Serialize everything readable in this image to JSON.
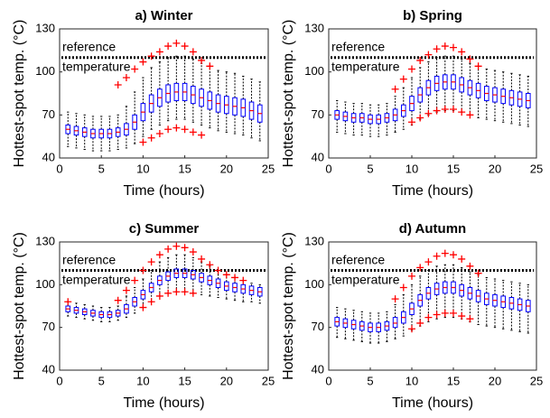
{
  "chart_data": [
    {
      "type": "box",
      "title": "a) Winter",
      "xlabel": "Time (hours)",
      "ylabel": "Hottest-spot temp. (°C)",
      "xlim": [
        0,
        25
      ],
      "xticks": [
        0,
        5,
        10,
        15,
        20,
        25
      ],
      "ylim": [
        40,
        130
      ],
      "yticks": [
        40,
        70,
        100,
        130
      ],
      "reference": {
        "value": 110,
        "labels": [
          "reference",
          "temperature"
        ]
      },
      "box_color": "#0000ff",
      "median_color": "#ff0000",
      "whisker_color": "#000000",
      "outlier_color": "#ff0000",
      "x": [
        1,
        2,
        3,
        4,
        5,
        6,
        7,
        8,
        9,
        10,
        11,
        12,
        13,
        14,
        15,
        16,
        17,
        18,
        19,
        20,
        21,
        22,
        23,
        24
      ],
      "median": [
        60,
        59,
        58,
        57,
        57,
        57,
        58,
        60,
        65,
        72,
        78,
        82,
        85,
        86,
        86,
        84,
        82,
        80,
        78,
        77,
        76,
        75,
        73,
        71
      ],
      "q1": [
        57,
        56,
        55,
        54,
        54,
        54,
        55,
        56,
        60,
        66,
        72,
        76,
        79,
        80,
        80,
        78,
        76,
        74,
        72,
        71,
        70,
        69,
        67,
        65
      ],
      "q3": [
        63,
        62,
        61,
        60,
        60,
        60,
        61,
        64,
        70,
        78,
        84,
        88,
        91,
        92,
        92,
        90,
        88,
        86,
        84,
        83,
        82,
        81,
        79,
        77
      ],
      "whisker_low": [
        48,
        47,
        46,
        45,
        45,
        45,
        46,
        47,
        50,
        55,
        60,
        63,
        66,
        67,
        67,
        65,
        63,
        61,
        59,
        58,
        57,
        56,
        54,
        52
      ],
      "whisker_high": [
        72,
        71,
        70,
        69,
        69,
        69,
        70,
        76,
        86,
        96,
        103,
        107,
        110,
        111,
        111,
        109,
        106,
        104,
        101,
        100,
        99,
        97,
        95,
        93
      ],
      "outliers_high": [
        null,
        null,
        null,
        null,
        null,
        null,
        91,
        96,
        102,
        107,
        111,
        114,
        118,
        120,
        118,
        114,
        108,
        104,
        null,
        null,
        null,
        null,
        null,
        null
      ],
      "outliers_low": [
        null,
        null,
        null,
        null,
        null,
        null,
        null,
        null,
        null,
        51,
        54,
        57,
        60,
        61,
        60,
        58,
        56,
        null,
        null,
        null,
        null,
        null,
        null,
        null
      ]
    },
    {
      "type": "box",
      "title": "b) Spring",
      "xlabel": "Time (hours)",
      "ylabel": "Hottest-spot temp. (°C)",
      "xlim": [
        0,
        25
      ],
      "xticks": [
        0,
        5,
        10,
        15,
        20,
        25
      ],
      "ylim": [
        40,
        130
      ],
      "yticks": [
        40,
        70,
        100,
        130
      ],
      "reference": {
        "value": 110,
        "labels": [
          "reference",
          "temperature"
        ]
      },
      "box_color": "#0000ff",
      "median_color": "#ff0000",
      "whisker_color": "#000000",
      "outlier_color": "#ff0000",
      "x": [
        1,
        2,
        3,
        4,
        5,
        6,
        7,
        8,
        9,
        10,
        11,
        12,
        13,
        14,
        15,
        16,
        17,
        18,
        19,
        20,
        21,
        22,
        23,
        24
      ],
      "median": [
        70,
        69,
        68,
        68,
        67,
        67,
        68,
        70,
        73,
        78,
        84,
        89,
        92,
        93,
        93,
        91,
        89,
        87,
        85,
        84,
        83,
        82,
        81,
        80
      ],
      "q1": [
        67,
        66,
        65,
        65,
        64,
        64,
        65,
        66,
        69,
        73,
        79,
        84,
        87,
        88,
        88,
        86,
        84,
        82,
        80,
        79,
        78,
        77,
        76,
        75
      ],
      "q3": [
        73,
        72,
        71,
        71,
        70,
        70,
        71,
        74,
        77,
        83,
        89,
        94,
        97,
        98,
        98,
        96,
        94,
        92,
        90,
        89,
        88,
        87,
        86,
        85
      ],
      "whisker_low": [
        58,
        57,
        56,
        56,
        55,
        55,
        56,
        58,
        60,
        63,
        67,
        70,
        72,
        73,
        73,
        72,
        70,
        68,
        67,
        66,
        65,
        64,
        63,
        62
      ],
      "whisker_high": [
        80,
        79,
        78,
        78,
        77,
        77,
        78,
        83,
        89,
        96,
        103,
        107,
        110,
        111,
        111,
        109,
        106,
        104,
        102,
        101,
        100,
        99,
        98,
        97
      ],
      "outliers_high": [
        null,
        null,
        null,
        null,
        null,
        null,
        null,
        88,
        95,
        102,
        108,
        112,
        116,
        118,
        117,
        114,
        109,
        104,
        null,
        null,
        null,
        null,
        null,
        null
      ],
      "outliers_low": [
        null,
        null,
        null,
        null,
        null,
        null,
        null,
        null,
        null,
        65,
        68,
        71,
        73,
        74,
        74,
        72,
        70,
        null,
        null,
        null,
        null,
        null,
        null,
        null
      ]
    },
    {
      "type": "box",
      "title": "c) Summer",
      "xlabel": "Time (hours)",
      "ylabel": "Hottest-spot temp. (°C)",
      "xlim": [
        0,
        25
      ],
      "xticks": [
        0,
        5,
        10,
        15,
        20,
        25
      ],
      "ylim": [
        40,
        130
      ],
      "yticks": [
        40,
        70,
        100,
        130
      ],
      "reference": {
        "value": 110,
        "labels": [
          "reference",
          "temperature"
        ]
      },
      "box_color": "#0000ff",
      "median_color": "#ff0000",
      "whisker_color": "#000000",
      "outlier_color": "#ff0000",
      "x": [
        1,
        2,
        3,
        4,
        5,
        6,
        7,
        8,
        9,
        10,
        11,
        12,
        13,
        14,
        15,
        16,
        17,
        18,
        19,
        20,
        21,
        22,
        23,
        24
      ],
      "median": [
        83,
        82,
        81,
        80,
        79,
        79,
        80,
        83,
        88,
        93,
        98,
        103,
        106,
        108,
        108,
        107,
        105,
        103,
        101,
        99,
        98,
        97,
        96,
        95
      ],
      "q1": [
        81,
        80,
        79,
        78,
        77,
        77,
        78,
        80,
        85,
        90,
        95,
        100,
        103,
        105,
        105,
        104,
        102,
        100,
        98,
        96,
        95,
        94,
        93,
        92
      ],
      "q3": [
        85,
        84,
        83,
        82,
        81,
        81,
        82,
        86,
        91,
        96,
        101,
        106,
        109,
        111,
        111,
        110,
        108,
        106,
        104,
        102,
        101,
        100,
        99,
        98
      ],
      "whisker_low": [
        78,
        77,
        76,
        75,
        74,
        74,
        75,
        77,
        80,
        84,
        88,
        92,
        94,
        95,
        95,
        94,
        93,
        92,
        91,
        90,
        89,
        88,
        88,
        87
      ],
      "whisker_high": [
        88,
        87,
        86,
        85,
        84,
        84,
        85,
        92,
        98,
        104,
        110,
        116,
        119,
        121,
        121,
        119,
        116,
        113,
        110,
        107,
        105,
        103,
        101,
        100
      ],
      "outliers_high": [
        88,
        null,
        null,
        null,
        null,
        null,
        89,
        96,
        103,
        110,
        116,
        121,
        125,
        127,
        126,
        123,
        118,
        114,
        110,
        107,
        105,
        103,
        null,
        null
      ],
      "outliers_low": [
        null,
        null,
        null,
        null,
        null,
        null,
        null,
        null,
        null,
        84,
        88,
        92,
        94,
        95,
        95,
        94,
        null,
        null,
        null,
        null,
        null,
        null,
        null,
        null
      ]
    },
    {
      "type": "box",
      "title": "d) Autumn",
      "xlabel": "Time (hours)",
      "ylabel": "Hottest-spot temp. (°C)",
      "xlim": [
        0,
        25
      ],
      "xticks": [
        0,
        5,
        10,
        15,
        20,
        25
      ],
      "ylim": [
        40,
        130
      ],
      "yticks": [
        40,
        70,
        100,
        130
      ],
      "reference": {
        "value": 110,
        "labels": [
          "reference",
          "temperature"
        ]
      },
      "box_color": "#0000ff",
      "median_color": "#ff0000",
      "whisker_color": "#000000",
      "outlier_color": "#ff0000",
      "x": [
        1,
        2,
        3,
        4,
        5,
        6,
        7,
        8,
        9,
        10,
        11,
        12,
        13,
        14,
        15,
        16,
        17,
        18,
        19,
        20,
        21,
        22,
        23,
        24
      ],
      "median": [
        74,
        73,
        72,
        71,
        70,
        70,
        71,
        73,
        77,
        83,
        89,
        94,
        97,
        98,
        98,
        96,
        94,
        92,
        90,
        89,
        88,
        87,
        86,
        85
      ],
      "q1": [
        71,
        70,
        69,
        68,
        67,
        67,
        68,
        70,
        73,
        79,
        85,
        90,
        93,
        94,
        94,
        92,
        90,
        88,
        86,
        85,
        84,
        83,
        82,
        81
      ],
      "q3": [
        77,
        76,
        75,
        74,
        73,
        73,
        74,
        77,
        81,
        87,
        93,
        98,
        101,
        102,
        102,
        100,
        98,
        96,
        94,
        93,
        92,
        91,
        90,
        89
      ],
      "whisker_low": [
        63,
        62,
        61,
        60,
        59,
        59,
        60,
        62,
        64,
        68,
        71,
        74,
        76,
        77,
        77,
        76,
        74,
        72,
        71,
        70,
        69,
        68,
        67,
        66
      ],
      "whisker_high": [
        84,
        83,
        82,
        81,
        80,
        80,
        81,
        86,
        93,
        100,
        106,
        110,
        113,
        114,
        114,
        112,
        109,
        107,
        105,
        104,
        103,
        102,
        101,
        100
      ],
      "outliers_high": [
        null,
        null,
        null,
        null,
        null,
        null,
        null,
        90,
        98,
        106,
        112,
        116,
        120,
        122,
        121,
        118,
        113,
        108,
        null,
        null,
        null,
        null,
        null,
        null
      ],
      "outliers_low": [
        null,
        null,
        null,
        null,
        null,
        null,
        null,
        null,
        null,
        69,
        73,
        77,
        79,
        80,
        80,
        78,
        76,
        null,
        null,
        null,
        null,
        null,
        null,
        null
      ]
    }
  ]
}
